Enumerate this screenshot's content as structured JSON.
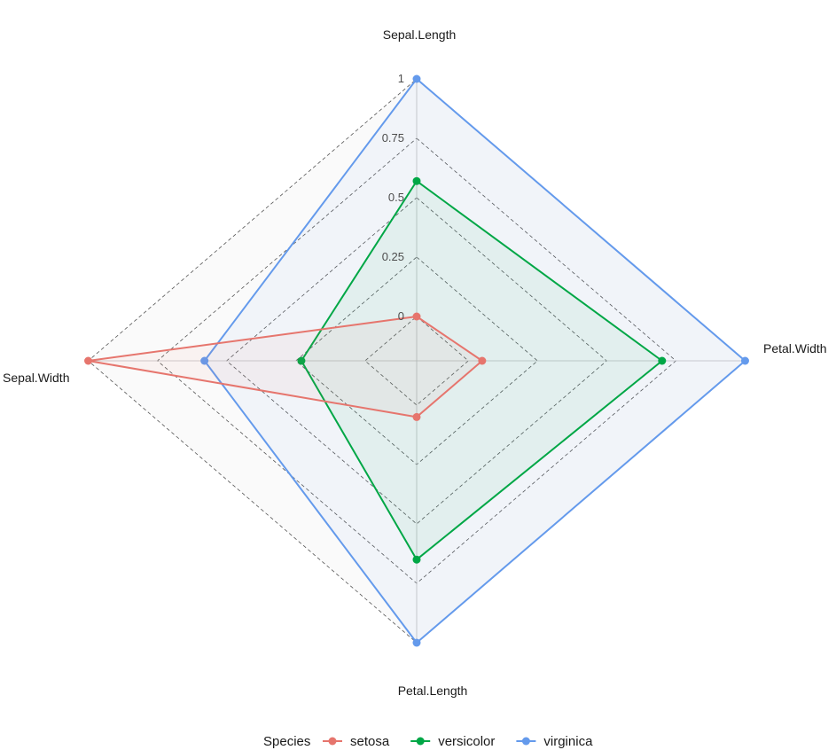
{
  "chart_data": {
    "type": "radar",
    "axes": [
      "Sepal.Length",
      "Petal.Width",
      "Petal.Length",
      "Sepal.Width"
    ],
    "ticks": [
      "0",
      "0.25",
      "0.5",
      "0.75",
      "1"
    ],
    "range": [
      0,
      1
    ],
    "grid": true,
    "legend": {
      "title": "Species",
      "placement": "bottom"
    },
    "series": [
      {
        "name": "setosa",
        "color": "#E6756D",
        "values": [
          0.0,
          0.05,
          0.05,
          1.0
        ]
      },
      {
        "name": "versicolor",
        "color": "#00A746",
        "values": [
          0.57,
          0.7,
          0.65,
          0.23
        ]
      },
      {
        "name": "virginica",
        "color": "#649AEC",
        "values": [
          1.0,
          1.0,
          1.0,
          0.58
        ]
      }
    ]
  }
}
